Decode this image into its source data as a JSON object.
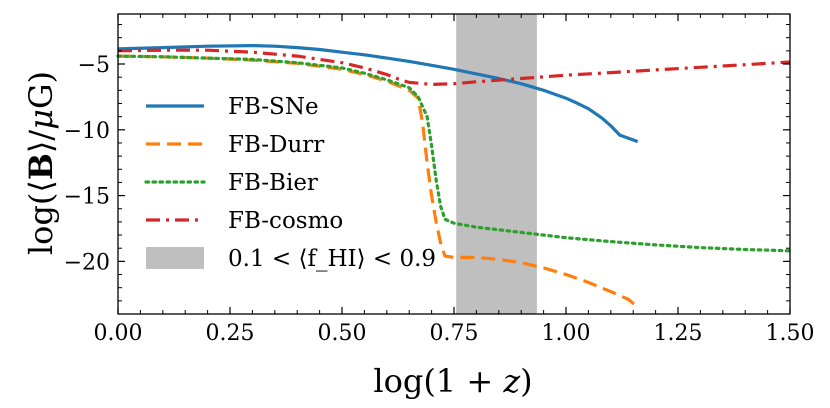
{
  "chart_data": {
    "type": "line",
    "xlabel": "log(1 + z)",
    "ylabel": "log(⟨B⟩/μG)",
    "xlim": [
      0.0,
      1.5
    ],
    "ylim": [
      -24,
      -1.2
    ],
    "xticks": [
      0.0,
      0.25,
      0.5,
      0.75,
      1.0,
      1.25,
      1.5
    ],
    "xtick_labels": [
      "0.00",
      "0.25",
      "0.50",
      "0.75",
      "1.00",
      "1.25",
      "1.50"
    ],
    "yticks": [
      -5,
      -10,
      -15,
      -20
    ],
    "ytick_labels": [
      "−5",
      "−10",
      "−15",
      "−20"
    ],
    "grid": false,
    "legend_position": "left",
    "shaded_region": {
      "label": "0.1 < ⟨f_HI⟩ < 0.9",
      "x_range": [
        0.755,
        0.935
      ],
      "color": "#bfbfbf"
    },
    "series": [
      {
        "name": "FB-SNe",
        "color": "#1f77b4",
        "style": "solid",
        "x": [
          0.0,
          0.1,
          0.2,
          0.3,
          0.35,
          0.4,
          0.45,
          0.5,
          0.55,
          0.6,
          0.65,
          0.7,
          0.75,
          0.8,
          0.85,
          0.9,
          0.95,
          1.0,
          1.02,
          1.05,
          1.08,
          1.1,
          1.12,
          1.16
        ],
        "y": [
          -3.85,
          -3.75,
          -3.65,
          -3.6,
          -3.65,
          -3.75,
          -3.9,
          -4.1,
          -4.3,
          -4.55,
          -4.8,
          -5.1,
          -5.4,
          -5.75,
          -6.1,
          -6.5,
          -7.0,
          -7.6,
          -7.9,
          -8.4,
          -9.1,
          -9.7,
          -10.4,
          -10.9
        ]
      },
      {
        "name": "FB-Durr",
        "color": "#ff7f0e",
        "style": "dashed",
        "x": [
          0.0,
          0.1,
          0.2,
          0.3,
          0.4,
          0.5,
          0.55,
          0.6,
          0.65,
          0.67,
          0.68,
          0.69,
          0.7,
          0.71,
          0.72,
          0.73,
          0.75,
          0.8,
          0.85,
          0.9,
          0.95,
          1.0,
          1.05,
          1.1,
          1.14,
          1.16
        ],
        "y": [
          -4.4,
          -4.45,
          -4.55,
          -4.7,
          -4.95,
          -5.4,
          -5.8,
          -6.3,
          -7.0,
          -7.6,
          -9.5,
          -12.5,
          -15.0,
          -17.0,
          -18.6,
          -19.6,
          -19.7,
          -19.7,
          -19.85,
          -20.1,
          -20.5,
          -21.0,
          -21.6,
          -22.3,
          -22.9,
          -23.5
        ]
      },
      {
        "name": "FB-Bier",
        "color": "#2ca02c",
        "style": "dotted",
        "x": [
          0.0,
          0.1,
          0.2,
          0.3,
          0.4,
          0.5,
          0.55,
          0.6,
          0.65,
          0.67,
          0.69,
          0.7,
          0.71,
          0.72,
          0.73,
          0.75,
          0.8,
          0.9,
          1.0,
          1.1,
          1.2,
          1.3,
          1.4,
          1.5
        ],
        "y": [
          -4.4,
          -4.45,
          -4.55,
          -4.65,
          -4.9,
          -5.3,
          -5.7,
          -6.2,
          -6.8,
          -7.5,
          -9.0,
          -11.2,
          -13.8,
          -15.8,
          -16.8,
          -17.1,
          -17.4,
          -17.8,
          -18.2,
          -18.5,
          -18.75,
          -18.95,
          -19.1,
          -19.2
        ]
      },
      {
        "name": "FB-cosmo",
        "color": "#d62728",
        "style": "dashdot",
        "x": [
          0.0,
          0.1,
          0.2,
          0.3,
          0.4,
          0.5,
          0.55,
          0.6,
          0.63,
          0.65,
          0.7,
          0.75,
          0.8,
          0.9,
          1.0,
          1.1,
          1.2,
          1.3,
          1.4,
          1.5
        ],
        "y": [
          -4.0,
          -3.95,
          -3.95,
          -4.1,
          -4.4,
          -4.9,
          -5.3,
          -5.8,
          -6.2,
          -6.4,
          -6.55,
          -6.5,
          -6.35,
          -6.1,
          -5.85,
          -5.65,
          -5.45,
          -5.25,
          -5.05,
          -4.85
        ]
      }
    ]
  }
}
